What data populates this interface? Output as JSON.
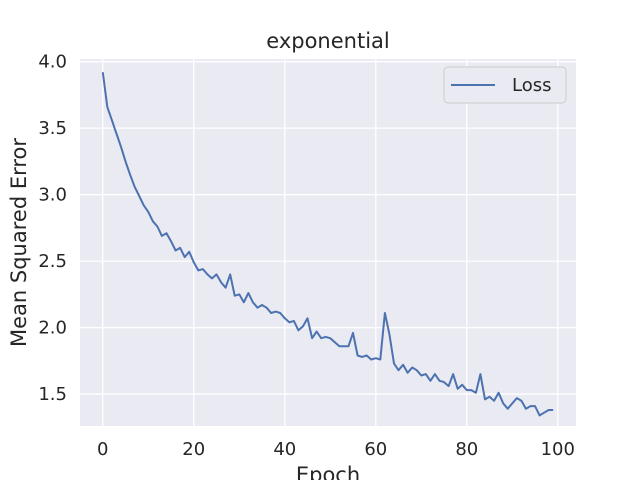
{
  "chart_data": {
    "type": "line",
    "title": "exponential",
    "xlabel": "Epoch",
    "ylabel": "Mean Squared Error",
    "xlim": [
      -5,
      104
    ],
    "ylim": [
      1.26,
      4.02
    ],
    "xticks": [
      0,
      20,
      40,
      60,
      80,
      100
    ],
    "yticks": [
      1.5,
      2.0,
      2.5,
      3.0,
      3.5,
      4.0
    ],
    "xtick_labels": [
      "0",
      "20",
      "40",
      "60",
      "80",
      "100"
    ],
    "ytick_labels": [
      "1.5",
      "2.0",
      "2.5",
      "3.0",
      "3.5",
      "4.0"
    ],
    "grid": true,
    "legend_position": "top-right",
    "series": [
      {
        "name": "Loss",
        "color": "#4c72b0",
        "x": [
          0,
          1,
          2,
          3,
          4,
          5,
          6,
          7,
          8,
          9,
          10,
          11,
          12,
          13,
          14,
          15,
          16,
          17,
          18,
          19,
          20,
          21,
          22,
          23,
          24,
          25,
          26,
          27,
          28,
          29,
          30,
          31,
          32,
          33,
          34,
          35,
          36,
          37,
          38,
          39,
          40,
          41,
          42,
          43,
          44,
          45,
          46,
          47,
          48,
          49,
          50,
          51,
          52,
          53,
          54,
          55,
          56,
          57,
          58,
          59,
          60,
          61,
          62,
          63,
          64,
          65,
          66,
          67,
          68,
          69,
          70,
          71,
          72,
          73,
          74,
          75,
          76,
          77,
          78,
          79,
          80,
          81,
          82,
          83,
          84,
          85,
          86,
          87,
          88,
          89,
          90,
          91,
          92,
          93,
          94,
          95,
          96,
          97,
          98,
          99
        ],
        "values": [
          3.92,
          3.66,
          3.56,
          3.46,
          3.36,
          3.25,
          3.15,
          3.06,
          2.99,
          2.92,
          2.87,
          2.8,
          2.76,
          2.69,
          2.71,
          2.65,
          2.58,
          2.6,
          2.53,
          2.57,
          2.49,
          2.43,
          2.44,
          2.4,
          2.37,
          2.4,
          2.34,
          2.3,
          2.4,
          2.24,
          2.25,
          2.19,
          2.26,
          2.19,
          2.15,
          2.17,
          2.15,
          2.11,
          2.12,
          2.11,
          2.07,
          2.04,
          2.05,
          1.98,
          2.01,
          2.07,
          1.92,
          1.97,
          1.92,
          1.93,
          1.92,
          1.89,
          1.86,
          1.86,
          1.86,
          1.96,
          1.79,
          1.78,
          1.79,
          1.76,
          1.77,
          1.76,
          2.11,
          1.95,
          1.73,
          1.68,
          1.72,
          1.66,
          1.7,
          1.68,
          1.64,
          1.65,
          1.6,
          1.65,
          1.6,
          1.59,
          1.56,
          1.65,
          1.54,
          1.57,
          1.53,
          1.53,
          1.51,
          1.65,
          1.46,
          1.48,
          1.45,
          1.51,
          1.43,
          1.39,
          1.43,
          1.47,
          1.45,
          1.39,
          1.41,
          1.41,
          1.34,
          1.36,
          1.38,
          1.38
        ]
      }
    ]
  }
}
